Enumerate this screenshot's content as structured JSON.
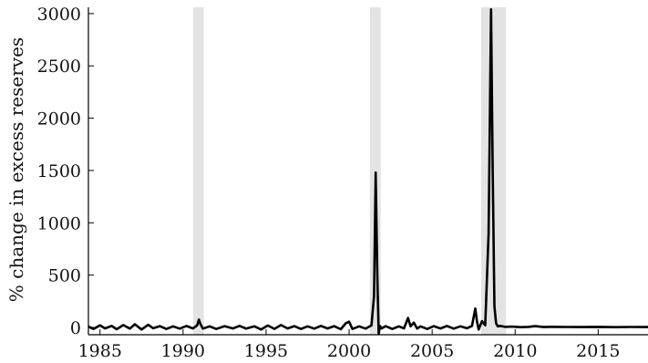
{
  "chart_data": {
    "type": "line",
    "title": "",
    "xlabel": "",
    "ylabel": "% change in excess reserves",
    "xlim": [
      1984.3,
      2018
    ],
    "ylim": [
      -70,
      3060
    ],
    "xticks": [
      1985,
      1990,
      1995,
      2000,
      2005,
      2010,
      2015
    ],
    "yticks": [
      0,
      500,
      1000,
      1500,
      2000,
      2500,
      3000
    ],
    "xtick_labels": [
      "1985",
      "1990",
      "1995",
      "2000",
      "2005",
      "2010",
      "2015"
    ],
    "ytick_labels": [
      "0",
      "500",
      "1000",
      "1500",
      "2000",
      "2500",
      "3000"
    ],
    "grid": false,
    "legend": "none",
    "colors": {
      "line": "#000000",
      "recession": "#e3e3e3",
      "axis": "#000000"
    },
    "recession_bands": [
      [
        1990.6,
        1991.25
      ],
      [
        2001.25,
        2001.9
      ],
      [
        2007.95,
        2009.45
      ]
    ],
    "series": [
      {
        "x": [
          1984.3,
          1984.6,
          1985.0,
          1985.3,
          1985.7,
          1986.0,
          1986.4,
          1986.8,
          1987.1,
          1987.5,
          1987.9,
          1988.2,
          1988.6,
          1989.0,
          1989.4,
          1989.8,
          1990.2,
          1990.6,
          1990.85,
          1990.95,
          1991.05,
          1991.2,
          1991.6,
          1992.0,
          1992.5,
          1993.0,
          1993.4,
          1993.8,
          1994.3,
          1994.7,
          1995.1,
          1995.5,
          1995.9,
          1996.3,
          1996.7,
          1997.1,
          1997.5,
          1997.9,
          1998.3,
          1998.7,
          1999.1,
          1999.5,
          1999.8,
          2000.0,
          2000.2,
          2000.6,
          2001.0,
          2001.35,
          2001.5,
          2001.6,
          2001.7,
          2001.78,
          2001.85,
          2001.95,
          2002.2,
          2002.6,
          2003.0,
          2003.3,
          2003.55,
          2003.7,
          2003.9,
          2004.1,
          2004.3,
          2004.7,
          2005.1,
          2005.5,
          2005.9,
          2006.3,
          2006.7,
          2007.1,
          2007.4,
          2007.6,
          2007.7,
          2007.8,
          2008.0,
          2008.2,
          2008.4,
          2008.55,
          2008.65,
          2008.75,
          2008.85,
          2008.95,
          2009.1,
          2009.4,
          2009.8,
          2010.3,
          2010.8,
          2011.2,
          2011.7,
          2012.2,
          2013.0,
          2014.0,
          2015.0,
          2016.0,
          2017.0,
          2018.0
        ],
        "y": [
          8,
          -15,
          20,
          -10,
          15,
          -18,
          22,
          -12,
          30,
          -20,
          25,
          -8,
          12,
          -15,
          10,
          -12,
          14,
          -10,
          20,
          75,
          30,
          -12,
          10,
          -15,
          12,
          -10,
          15,
          -12,
          10,
          -20,
          18,
          -14,
          22,
          -10,
          12,
          -15,
          10,
          -12,
          15,
          -10,
          12,
          -18,
          40,
          55,
          -15,
          10,
          -12,
          20,
          300,
          1480,
          500,
          -60,
          15,
          -10,
          12,
          -15,
          10,
          -10,
          90,
          10,
          45,
          -12,
          10,
          -15,
          12,
          -10,
          14,
          -12,
          10,
          -8,
          15,
          180,
          60,
          -20,
          60,
          20,
          900,
          3040,
          1500,
          200,
          40,
          10,
          15,
          5,
          8,
          2,
          5,
          12,
          3,
          6,
          4,
          3,
          5,
          2,
          4,
          3
        ]
      }
    ]
  }
}
